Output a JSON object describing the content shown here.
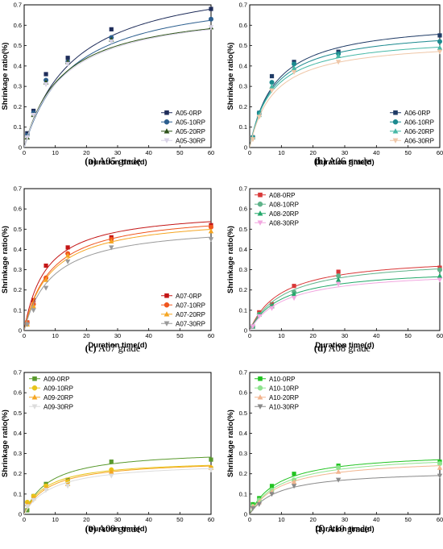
{
  "chart_data": [
    {
      "type": "scatter",
      "caption_label": "(a)",
      "caption_text": "A05 grade",
      "xlabel": "Duration time(d)",
      "ylabel": "Shrinkage ratio(%)",
      "xlim": [
        0,
        60
      ],
      "ylim": [
        0,
        0.7
      ],
      "xticks": [
        0,
        10,
        20,
        30,
        40,
        50,
        60
      ],
      "yticks": [
        0,
        0.1,
        0.2,
        0.3,
        0.4,
        0.5,
        0.6,
        0.7
      ],
      "ytick_labels": [
        "0",
        "0.1",
        "0.2",
        "0.3",
        "0.4",
        "0.5",
        "0.6",
        "0.7"
      ],
      "legend_position": "bottom-right",
      "x": [
        1,
        3,
        7,
        14,
        28,
        60
      ],
      "series": [
        {
          "name": "A05-0RP",
          "color": "#1f2d5a",
          "marker": "square",
          "values": [
            0.07,
            0.18,
            0.36,
            0.44,
            0.58,
            0.68
          ],
          "fit_a": 0.86,
          "fit_b": 16
        },
        {
          "name": "A05-10RP",
          "color": "#2c5f8f",
          "marker": "circle",
          "values": [
            0.06,
            0.17,
            0.33,
            0.42,
            0.54,
            0.63
          ],
          "fit_a": 0.78,
          "fit_b": 15
        },
        {
          "name": "A05-20RP",
          "color": "#2d5219",
          "marker": "triangle",
          "values": [
            0.05,
            0.16,
            0.32,
            0.42,
            0.53,
            0.59
          ],
          "fit_a": 0.7,
          "fit_b": 12
        },
        {
          "name": "A05-30RP",
          "color": "#d8d2e6",
          "marker": "triangle-down",
          "values": [
            0.05,
            0.16,
            0.31,
            0.41,
            0.52,
            0.59
          ],
          "fit_a": 0.7,
          "fit_b": 12.5
        }
      ]
    },
    {
      "type": "scatter",
      "caption_label": "(b)",
      "caption_text": "A06 grade",
      "xlabel": "Duration time(d)",
      "ylabel": "Shrinkage ratio(%)",
      "xlim": [
        0,
        60
      ],
      "ylim": [
        0,
        0.7
      ],
      "xticks": [
        0,
        10,
        20,
        30,
        40,
        50,
        60
      ],
      "yticks": [
        0,
        0.1,
        0.2,
        0.3,
        0.4,
        0.5,
        0.6,
        0.7
      ],
      "ytick_labels": [
        "0",
        "0.1",
        "0.2",
        "0.3",
        "0.4",
        "0.5",
        "0.6",
        "0.7"
      ],
      "legend_position": "bottom-right",
      "x": [
        1,
        3,
        7,
        14,
        28,
        60
      ],
      "series": [
        {
          "name": "A06-0RP",
          "color": "#1f3b66",
          "marker": "square",
          "values": [
            0.05,
            0.17,
            0.35,
            0.42,
            0.47,
            0.55
          ],
          "fit_a": 0.63,
          "fit_b": 8
        },
        {
          "name": "A06-10RP",
          "color": "#1b8a8f",
          "marker": "circle",
          "values": [
            0.05,
            0.17,
            0.32,
            0.41,
            0.46,
            0.52
          ],
          "fit_a": 0.59,
          "fit_b": 7.5
        },
        {
          "name": "A06-20RP",
          "color": "#46b8a6",
          "marker": "triangle",
          "values": [
            0.05,
            0.16,
            0.3,
            0.39,
            0.45,
            0.49
          ],
          "fit_a": 0.55,
          "fit_b": 7
        },
        {
          "name": "A06-30RP",
          "color": "#efc7a8",
          "marker": "triangle-down",
          "values": [
            0.04,
            0.15,
            0.28,
            0.37,
            0.42,
            0.47
          ],
          "fit_a": 0.53,
          "fit_b": 7.5
        }
      ]
    },
    {
      "type": "scatter",
      "caption_label": "(c)",
      "caption_text": "A07 grade",
      "xlabel": "Duration time(d)",
      "ylabel": "Shrinkage ratio(%)",
      "xlim": [
        0,
        60
      ],
      "ylim": [
        0,
        0.7
      ],
      "xticks": [
        0,
        10,
        20,
        30,
        40,
        50,
        60
      ],
      "yticks": [
        0,
        0.1,
        0.2,
        0.3,
        0.4,
        0.5,
        0.6,
        0.7
      ],
      "ytick_labels": [
        "0",
        "0.1",
        "0.2",
        "0.3",
        "0.4",
        "0.5",
        "0.6",
        "0.7"
      ],
      "legend_position": "bottom-right",
      "x": [
        1,
        3,
        7,
        14,
        28,
        60
      ],
      "series": [
        {
          "name": "A07-0RP",
          "color": "#c41616",
          "marker": "square",
          "values": [
            0.04,
            0.15,
            0.32,
            0.41,
            0.46,
            0.52
          ],
          "fit_a": 0.6,
          "fit_b": 7
        },
        {
          "name": "A07-10RP",
          "color": "#f0561e",
          "marker": "circle",
          "values": [
            0.04,
            0.13,
            0.26,
            0.38,
            0.45,
            0.51
          ],
          "fit_a": 0.59,
          "fit_b": 8.5
        },
        {
          "name": "A07-20RP",
          "color": "#f5a623",
          "marker": "triangle",
          "values": [
            0.03,
            0.12,
            0.25,
            0.37,
            0.44,
            0.49
          ],
          "fit_a": 0.57,
          "fit_b": 8.5
        },
        {
          "name": "A07-30RP",
          "color": "#9a9a9a",
          "marker": "triangle-down",
          "values": [
            0.03,
            0.1,
            0.21,
            0.34,
            0.41,
            0.45
          ],
          "fit_a": 0.53,
          "fit_b": 9
        }
      ]
    },
    {
      "type": "scatter",
      "caption_label": "(d)",
      "caption_text": "A08 grade",
      "xlabel": "Duration time(d)",
      "ylabel": "Shrinkage ratio(%)",
      "xlim": [
        0,
        60
      ],
      "ylim": [
        0,
        0.7
      ],
      "xticks": [
        0,
        10,
        20,
        30,
        40,
        50,
        60
      ],
      "yticks": [
        0,
        0.1,
        0.2,
        0.3,
        0.4,
        0.5,
        0.6,
        0.7
      ],
      "ytick_labels": [
        "0",
        "0.1",
        "0.2",
        "0.3",
        "0.4",
        "0.5",
        "0.6",
        "0.7"
      ],
      "legend_position": "top-left",
      "x": [
        1,
        3,
        7,
        14,
        28,
        60
      ],
      "series": [
        {
          "name": "A08-0RP",
          "color": "#d93838",
          "marker": "square",
          "values": [
            0.02,
            0.09,
            0.13,
            0.22,
            0.29,
            0.31
          ],
          "fit_a": 0.37,
          "fit_b": 10
        },
        {
          "name": "A08-10RP",
          "color": "#5fb38a",
          "marker": "circle",
          "values": [
            0.02,
            0.08,
            0.12,
            0.19,
            0.27,
            0.3
          ],
          "fit_a": 0.36,
          "fit_b": 11
        },
        {
          "name": "A08-20RP",
          "color": "#23a86a",
          "marker": "triangle",
          "values": [
            0.02,
            0.08,
            0.12,
            0.18,
            0.25,
            0.27
          ],
          "fit_a": 0.31,
          "fit_b": 10
        },
        {
          "name": "A08-30RP",
          "color": "#f2a7e0",
          "marker": "triangle-down",
          "values": [
            0.02,
            0.07,
            0.11,
            0.16,
            0.23,
            0.25
          ],
          "fit_a": 0.3,
          "fit_b": 11
        }
      ]
    },
    {
      "type": "scatter",
      "caption_label": "(e)",
      "caption_text": "A09 grade",
      "xlabel": "Duration time(d)",
      "ylabel": "Shrinkage ratio(%)",
      "xlim": [
        0,
        60
      ],
      "ylim": [
        0,
        0.7
      ],
      "xticks": [
        0,
        10,
        20,
        30,
        40,
        50,
        60
      ],
      "yticks": [
        0,
        0.1,
        0.2,
        0.3,
        0.4,
        0.5,
        0.6,
        0.7
      ],
      "ytick_labels": [
        "0",
        "0.1",
        "0.2",
        "0.3",
        "0.4",
        "0.5",
        "0.6",
        "0.7"
      ],
      "legend_position": "top-left",
      "x": [
        1,
        3,
        7,
        14,
        28,
        60
      ],
      "series": [
        {
          "name": "A09-0RP",
          "color": "#5a9a2e",
          "marker": "square",
          "values": [
            0.02,
            0.09,
            0.15,
            0.17,
            0.26,
            0.27
          ],
          "fit_a": 0.32,
          "fit_b": 8
        },
        {
          "name": "A09-10RP",
          "color": "#e8c419",
          "marker": "circle",
          "values": [
            0.06,
            0.09,
            0.14,
            0.16,
            0.22,
            0.23
          ],
          "fit_a": 0.27,
          "fit_b": 7
        },
        {
          "name": "A09-20RP",
          "color": "#f5a623",
          "marker": "triangle",
          "values": [
            0.05,
            0.08,
            0.13,
            0.15,
            0.21,
            0.23
          ],
          "fit_a": 0.27,
          "fit_b": 8
        },
        {
          "name": "A09-30RP",
          "color": "#dcdcdc",
          "marker": "triangle-down",
          "values": [
            0.04,
            0.07,
            0.12,
            0.14,
            0.19,
            0.22
          ],
          "fit_a": 0.26,
          "fit_b": 9
        }
      ]
    },
    {
      "type": "scatter",
      "caption_label": "(f)",
      "caption_text": "A10 grade",
      "xlabel": "Duration time(d)",
      "ylabel": "Shrinkage ratio(%)",
      "xlim": [
        0,
        60
      ],
      "ylim": [
        0,
        0.7
      ],
      "xticks": [
        0,
        10,
        20,
        30,
        40,
        50,
        60
      ],
      "yticks": [
        0,
        0.1,
        0.2,
        0.3,
        0.4,
        0.5,
        0.6,
        0.7
      ],
      "ytick_labels": [
        "0",
        "0.1",
        "0.2",
        "0.3",
        "0.4",
        "0.5",
        "0.6",
        "0.7"
      ],
      "legend_position": "top-left",
      "x": [
        1,
        3,
        7,
        14,
        28,
        60
      ],
      "series": [
        {
          "name": "A10-0RP",
          "color": "#22c422",
          "marker": "square",
          "values": [
            0.05,
            0.08,
            0.14,
            0.2,
            0.24,
            0.26
          ],
          "fit_a": 0.31,
          "fit_b": 9
        },
        {
          "name": "A10-10RP",
          "color": "#8fe38f",
          "marker": "circle",
          "values": [
            0.04,
            0.07,
            0.12,
            0.17,
            0.23,
            0.25
          ],
          "fit_a": 0.3,
          "fit_b": 10
        },
        {
          "name": "A10-20RP",
          "color": "#f2b58f",
          "marker": "triangle",
          "values": [
            0.04,
            0.06,
            0.11,
            0.16,
            0.21,
            0.23
          ],
          "fit_a": 0.28,
          "fit_b": 10
        },
        {
          "name": "A10-30RP",
          "color": "#8a8a8a",
          "marker": "triangle-down",
          "values": [
            0.03,
            0.05,
            0.1,
            0.14,
            0.17,
            0.19
          ],
          "fit_a": 0.22,
          "fit_b": 9
        }
      ]
    }
  ]
}
